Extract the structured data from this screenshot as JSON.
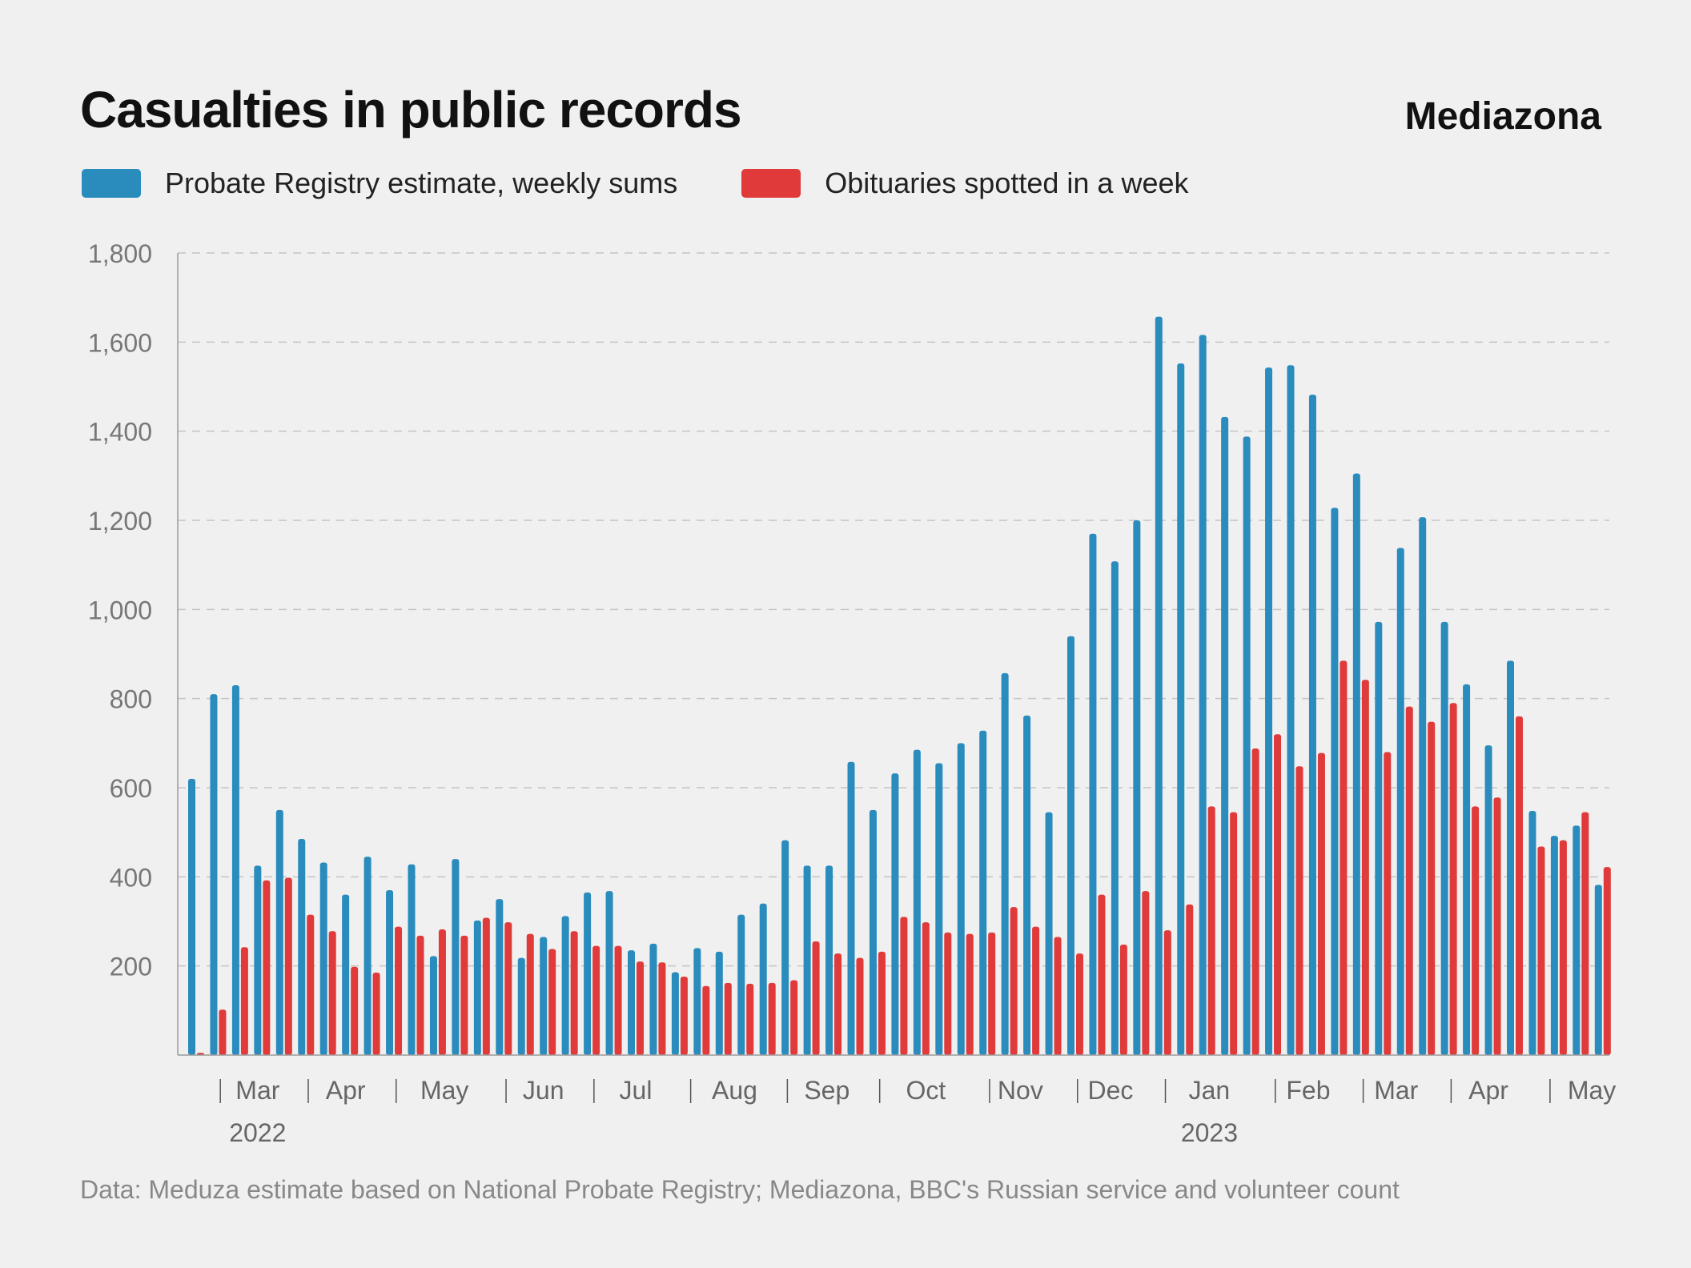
{
  "header": {
    "title": "Casualties in public records",
    "brand": "Mediazona"
  },
  "legend": [
    {
      "label": "Probate Registry estimate, weekly sums",
      "color": "#2a8bbd"
    },
    {
      "label": "Obituaries spotted in a week",
      "color": "#e03a3a"
    }
  ],
  "source": "Data: Meduza estimate based on National Probate Registry; Mediazona, BBC's Russian service and volunteer count",
  "chart_data": {
    "type": "bar",
    "title": "Casualties in public records",
    "ylim": [
      0,
      1800
    ],
    "yticks": [
      "200",
      "400",
      "600",
      "800",
      "1,000",
      "1,200",
      "1,400",
      "1,600",
      "1,800"
    ],
    "grid": true,
    "legend_position": "top-left",
    "month_labels": [
      {
        "label": "Mar",
        "week": 3
      },
      {
        "label": "Apr",
        "week": 7
      },
      {
        "label": "May",
        "week": 11.5
      },
      {
        "label": "Jun",
        "week": 16
      },
      {
        "label": "Jul",
        "week": 20.2
      },
      {
        "label": "Aug",
        "week": 24.7
      },
      {
        "label": "Sep",
        "week": 28.9
      },
      {
        "label": "Oct",
        "week": 33.4
      },
      {
        "label": "Nov",
        "week": 37.7
      },
      {
        "label": "Dec",
        "week": 41.8
      },
      {
        "label": "Jan",
        "week": 46.3
      },
      {
        "label": "Feb",
        "week": 50.8
      },
      {
        "label": "Mar",
        "week": 54.8
      },
      {
        "label": "Apr",
        "week": 59
      },
      {
        "label": "May",
        "week": 63.7
      }
    ],
    "separators": [
      1.3,
      5.3,
      9.3,
      14.3,
      18.3,
      22.7,
      27.1,
      31.3,
      36.3,
      40.3,
      44.3,
      49.3,
      53.3,
      57.3,
      61.8
    ],
    "year_labels": [
      {
        "label": "2022",
        "week": 3
      },
      {
        "label": "2023",
        "week": 46.3
      }
    ],
    "series": [
      {
        "name": "Probate Registry estimate, weekly sums",
        "color": "#2a8bbd",
        "values": [
          620,
          810,
          830,
          425,
          550,
          485,
          432,
          360,
          445,
          370,
          428,
          222,
          440,
          302,
          350,
          218,
          265,
          312,
          365,
          368,
          235,
          250,
          186,
          240,
          232,
          315,
          340,
          482,
          425,
          425,
          658,
          550,
          632,
          685,
          655,
          700,
          728,
          857,
          762,
          545,
          940,
          1170,
          1108,
          1200,
          1657,
          1552,
          1616,
          1432,
          1388,
          1543,
          1548,
          1482,
          1228,
          1305,
          972,
          1138,
          1207,
          972,
          832,
          695,
          885,
          548,
          492,
          515,
          382
        ]
      },
      {
        "name": "Obituaries spotted in a week",
        "color": "#e03a3a",
        "values": [
          5,
          102,
          242,
          392,
          398,
          315,
          278,
          198,
          185,
          288,
          268,
          282,
          268,
          308,
          298,
          272,
          238,
          278,
          245,
          245,
          210,
          208,
          176,
          155,
          162,
          160,
          162,
          168,
          255,
          228,
          218,
          232,
          310,
          298,
          275,
          272,
          275,
          332,
          288,
          265,
          228,
          360,
          248,
          368,
          280,
          338,
          558,
          545,
          688,
          720,
          648,
          678,
          885,
          842,
          680,
          782,
          748,
          790,
          558,
          578,
          760,
          468,
          482,
          545,
          422
        ]
      }
    ]
  }
}
